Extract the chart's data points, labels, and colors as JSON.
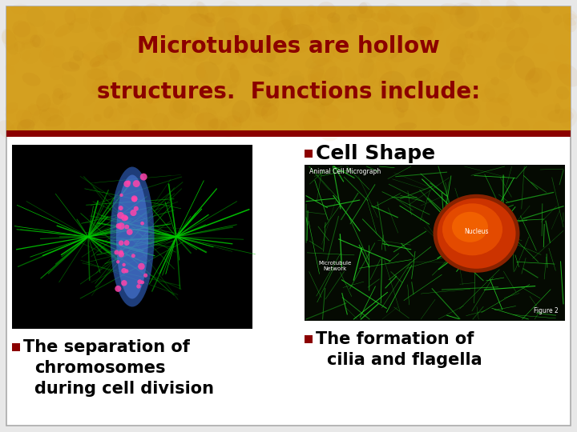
{
  "title_line1": "Microtubules are hollow",
  "title_line2": "structures.  Functions include:",
  "title_bg_color": "#D4A020",
  "title_text_color": "#8B0000",
  "dark_red_bar_color": "#8B0000",
  "slide_bg_color": "#F5F5F5",
  "outer_bg_color": "#E8E8E8",
  "bullet_color": "#8B0000",
  "bullet1_text_line1": "Cell Shape",
  "bullet2_line1": "The separation of",
  "bullet2_line2": "chromosomes",
  "bullet2_line3": "during cell division",
  "bullet3_line1": "The formation of",
  "bullet3_line2": "cilia and flagella",
  "border_color": "#AAAAAA",
  "title_fontsize": 20,
  "body_fontsize": 15
}
